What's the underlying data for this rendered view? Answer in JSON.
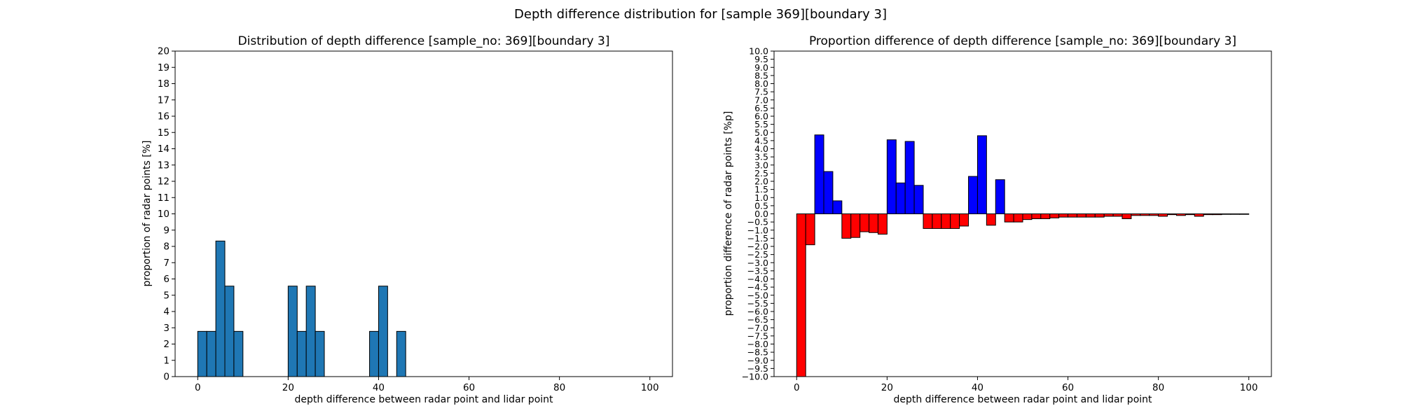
{
  "figure": {
    "suptitle": "Depth difference distribution for [sample 369][boundary 3]"
  },
  "chart_data": [
    {
      "type": "bar",
      "title": "Distribution of depth difference [sample_no: 369][boundary 3]",
      "xlabel": "depth difference between radar point and lidar point",
      "ylabel": "proportion of radar points [%]",
      "xlim": [
        -5,
        105
      ],
      "ylim": [
        0,
        20
      ],
      "xticks": [
        0,
        20,
        40,
        60,
        80,
        100
      ],
      "yticks": [
        0,
        1,
        2,
        3,
        4,
        5,
        6,
        7,
        8,
        9,
        10,
        11,
        12,
        13,
        14,
        15,
        16,
        17,
        18,
        19,
        20
      ],
      "grid": false,
      "bin_width": 2,
      "bar_color": "#1f77b4",
      "edge_color": "#000000",
      "bars": [
        {
          "x": 0,
          "value": 2.78
        },
        {
          "x": 2,
          "value": 2.78
        },
        {
          "x": 4,
          "value": 8.33
        },
        {
          "x": 6,
          "value": 5.56
        },
        {
          "x": 8,
          "value": 2.78
        },
        {
          "x": 20,
          "value": 5.56
        },
        {
          "x": 22,
          "value": 2.78
        },
        {
          "x": 24,
          "value": 5.56
        },
        {
          "x": 26,
          "value": 2.78
        },
        {
          "x": 38,
          "value": 2.78
        },
        {
          "x": 40,
          "value": 5.56
        },
        {
          "x": 44,
          "value": 2.78
        }
      ]
    },
    {
      "type": "bar",
      "title": "Proportion difference of depth difference [sample_no: 369][boundary 3]",
      "xlabel": "depth difference between radar point and lidar point",
      "ylabel": "proportion difference of radar points [%p]",
      "xlim": [
        -5,
        105
      ],
      "ylim": [
        -10,
        10
      ],
      "xticks": [
        0,
        20,
        40,
        60,
        80,
        100
      ],
      "yticks": [
        10.0,
        9.5,
        9.0,
        8.5,
        8.0,
        7.5,
        7.0,
        6.5,
        6.0,
        5.5,
        5.0,
        4.5,
        4.0,
        3.5,
        3.0,
        2.5,
        2.0,
        1.5,
        1.0,
        0.5,
        0.0,
        -0.5,
        -1.0,
        -1.5,
        -2.0,
        -2.5,
        -3.0,
        -3.5,
        -4.0,
        -4.5,
        -5.0,
        -5.5,
        -6.0,
        -6.5,
        -7.0,
        -7.5,
        -8.0,
        -8.5,
        -9.0,
        -9.5,
        -10.0
      ],
      "grid": false,
      "bin_width": 2,
      "positive_color": "#0000ff",
      "negative_color": "#ff0000",
      "edge_color": "#000000",
      "bars": [
        {
          "x": 0,
          "value": -10.0
        },
        {
          "x": 2,
          "value": -1.9
        },
        {
          "x": 4,
          "value": 4.85
        },
        {
          "x": 6,
          "value": 2.6
        },
        {
          "x": 8,
          "value": 0.8
        },
        {
          "x": 10,
          "value": -1.5
        },
        {
          "x": 12,
          "value": -1.45
        },
        {
          "x": 14,
          "value": -1.1
        },
        {
          "x": 16,
          "value": -1.15
        },
        {
          "x": 18,
          "value": -1.25
        },
        {
          "x": 20,
          "value": 4.55
        },
        {
          "x": 22,
          "value": 1.9
        },
        {
          "x": 24,
          "value": 4.45
        },
        {
          "x": 26,
          "value": 1.75
        },
        {
          "x": 28,
          "value": -0.9
        },
        {
          "x": 30,
          "value": -0.9
        },
        {
          "x": 32,
          "value": -0.9
        },
        {
          "x": 34,
          "value": -0.9
        },
        {
          "x": 36,
          "value": -0.75
        },
        {
          "x": 38,
          "value": 2.3
        },
        {
          "x": 40,
          "value": 4.8
        },
        {
          "x": 42,
          "value": -0.7
        },
        {
          "x": 44,
          "value": 2.1
        },
        {
          "x": 46,
          "value": -0.5
        },
        {
          "x": 48,
          "value": -0.5
        },
        {
          "x": 50,
          "value": -0.35
        },
        {
          "x": 52,
          "value": -0.3
        },
        {
          "x": 54,
          "value": -0.3
        },
        {
          "x": 56,
          "value": -0.25
        },
        {
          "x": 58,
          "value": -0.2
        },
        {
          "x": 60,
          "value": -0.2
        },
        {
          "x": 62,
          "value": -0.2
        },
        {
          "x": 64,
          "value": -0.2
        },
        {
          "x": 66,
          "value": -0.2
        },
        {
          "x": 68,
          "value": -0.15
        },
        {
          "x": 70,
          "value": -0.15
        },
        {
          "x": 72,
          "value": -0.3
        },
        {
          "x": 74,
          "value": -0.1
        },
        {
          "x": 76,
          "value": -0.1
        },
        {
          "x": 78,
          "value": -0.1
        },
        {
          "x": 80,
          "value": -0.15
        },
        {
          "x": 82,
          "value": -0.05
        },
        {
          "x": 84,
          "value": -0.1
        },
        {
          "x": 86,
          "value": -0.05
        },
        {
          "x": 88,
          "value": -0.15
        },
        {
          "x": 90,
          "value": -0.05
        },
        {
          "x": 92,
          "value": -0.05
        },
        {
          "x": 94,
          "value": -0.03
        },
        {
          "x": 96,
          "value": -0.03
        },
        {
          "x": 98,
          "value": -0.03
        }
      ]
    }
  ]
}
